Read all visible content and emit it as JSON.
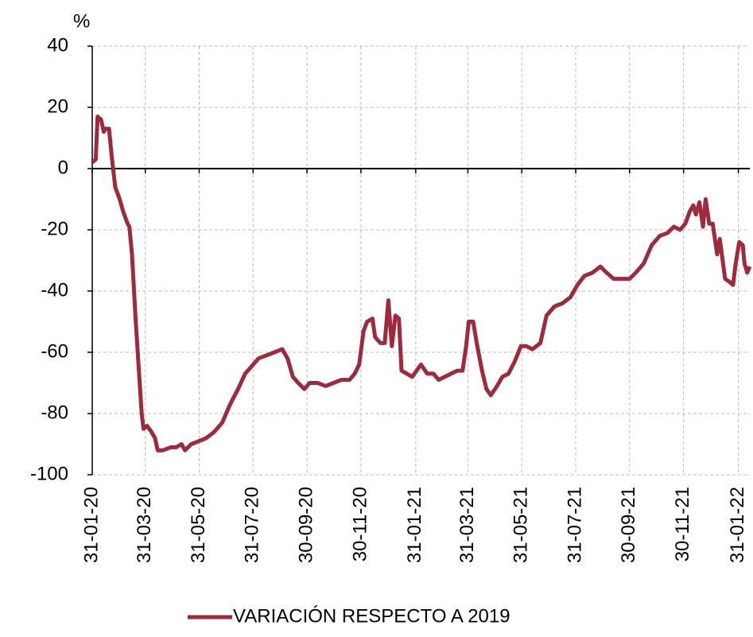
{
  "chart_data": {
    "type": "line",
    "ylabel": "%",
    "x": [
      "31-01-20",
      "04-02-20",
      "06-02-20",
      "10-02-20",
      "13-02-20",
      "15-02-20",
      "19-02-20",
      "22-02-20",
      "26-02-20",
      "02-03-20",
      "06-03-20",
      "11-03-20",
      "13-03-20",
      "16-03-20",
      "20-03-20",
      "24-03-20",
      "27-03-20",
      "29-03-20",
      "02-04-20",
      "07-04-20",
      "11-04-20",
      "14-04-20",
      "20-04-20",
      "29-04-20",
      "05-05-20",
      "11-05-20",
      "15-05-20",
      "22-05-20",
      "31-05-20",
      "08-06-20",
      "17-06-20",
      "26-06-20",
      "05-07-20",
      "14-07-20",
      "22-07-20",
      "28-07-20",
      "06-08-20",
      "15-08-20",
      "24-08-20",
      "02-09-20",
      "08-09-20",
      "14-09-20",
      "20-09-20",
      "27-09-20",
      "03-10-20",
      "12-10-20",
      "21-10-20",
      "30-10-20",
      "08-11-20",
      "17-11-20",
      "23-11-20",
      "28-11-20",
      "03-12-20",
      "07-12-20",
      "13-12-20",
      "16-12-20",
      "22-12-20",
      "27-12-20",
      "31-12-20",
      "04-01-21",
      "08-01-21",
      "12-01-21",
      "15-01-21",
      "21-01-21",
      "27-01-21",
      "01-02-21",
      "06-02-21",
      "13-02-21",
      "20-02-21",
      "26-02-21",
      "05-03-21",
      "12-03-21",
      "19-03-21",
      "25-03-21",
      "29-03-21",
      "01-04-21",
      "06-04-21",
      "10-04-21",
      "16-04-21",
      "21-04-21",
      "26-04-21",
      "03-05-21",
      "09-05-21",
      "16-05-21",
      "23-05-21",
      "30-05-21",
      "05-06-21",
      "12-06-21",
      "21-06-21",
      "28-06-21",
      "07-07-21",
      "16-07-21",
      "25-07-21",
      "02-08-21",
      "10-08-21",
      "19-08-21",
      "28-08-21",
      "04-09-21",
      "12-09-21",
      "21-09-21",
      "30-09-21",
      "07-10-21",
      "16-10-21",
      "25-10-21",
      "03-11-21",
      "12-11-21",
      "19-11-21",
      "26-11-21",
      "02-12-21",
      "07-12-21",
      "11-12-21",
      "14-12-21",
      "18-12-21",
      "22-12-21",
      "25-12-21",
      "29-12-21",
      "02-01-22",
      "07-01-22",
      "10-01-22",
      "16-01-22",
      "21-01-22",
      "25-01-22",
      "28-01-22",
      "01-02-22",
      "05-02-22",
      "07-02-22",
      "10-02-22",
      "13-02-22"
    ],
    "series": [
      {
        "name": "VARIACIÓN RESPECTO A 2019",
        "color": "#9e2a3c",
        "values": [
          2,
          3,
          17,
          16,
          12,
          13,
          13,
          4,
          -6,
          -10,
          -14,
          -18,
          -19,
          -28,
          -49,
          -67,
          -80,
          -85,
          -84,
          -86,
          -88,
          -92,
          -92,
          -91,
          -91,
          -90,
          -92,
          -90,
          -89,
          -88,
          -86,
          -83,
          -77,
          -72,
          -67,
          -65,
          -62,
          -61,
          -60,
          -59,
          -62,
          -68,
          -70,
          -72,
          -70,
          -70,
          -71,
          -70,
          -69,
          -69,
          -67,
          -64,
          -53,
          -50,
          -49,
          -55,
          -57,
          -57,
          -43,
          -58,
          -48,
          -49,
          -66,
          -67,
          -68,
          -66,
          -64,
          -67,
          -67,
          -69,
          -68,
          -67,
          -66,
          -66,
          -58,
          -50,
          -50,
          -57,
          -66,
          -72,
          -74,
          -71,
          -68,
          -67,
          -63,
          -58,
          -58,
          -59,
          -57,
          -48,
          -45,
          -44,
          -42,
          -38,
          -35,
          -34,
          -32,
          -34,
          -36,
          -36,
          -36,
          -34,
          -31,
          -25,
          -22,
          -21,
          -19,
          -20,
          -18,
          -14,
          -12,
          -15,
          -11,
          -19,
          -10,
          -18,
          -18,
          -28,
          -23,
          -36,
          -37,
          -38,
          -31,
          -24,
          -25,
          -31,
          -34,
          -32
        ]
      }
    ],
    "xlim": [
      "31-01-20",
      "13-02-22"
    ],
    "xticks": [
      "31-01-20",
      "31-03-20",
      "31-05-20",
      "31-07-20",
      "30-09-20",
      "30-11-20",
      "31-01-21",
      "31-03-21",
      "31-05-21",
      "31-07-21",
      "30-09-21",
      "30-11-21",
      "31-01-22"
    ],
    "ylim": [
      -100,
      40
    ],
    "yticks": [
      -100,
      -80,
      -60,
      -40,
      -20,
      0,
      20,
      40
    ],
    "grid": true
  }
}
